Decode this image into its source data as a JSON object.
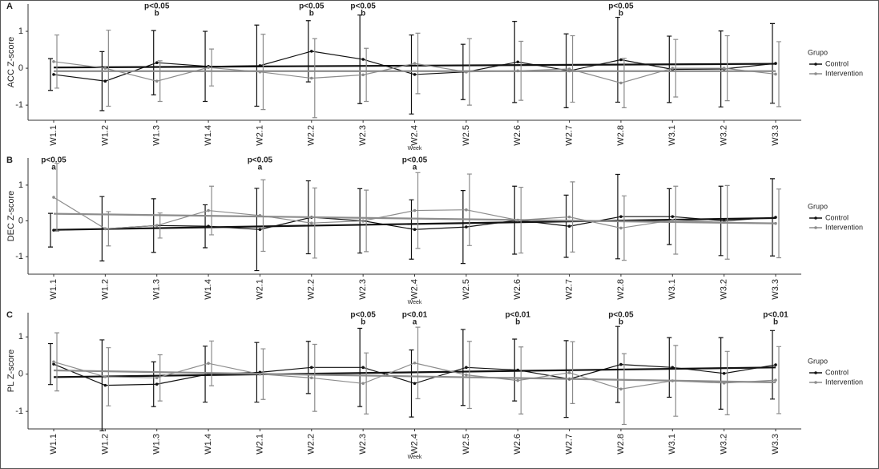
{
  "chart_data": [
    {
      "type": "line",
      "panel": "A",
      "ylabel": "ACC Z-score",
      "xlabel": "Week",
      "legend_title": "Grupo",
      "categories": [
        "W1.1",
        "W1.2",
        "W1.3",
        "W1.4",
        "W2.1",
        "W2.2",
        "W2.3",
        "W2.4",
        "W2.5",
        "W2.6",
        "W2.7",
        "W2.8",
        "W3.1",
        "W3.2",
        "W3.3"
      ],
      "ylim": [
        -1.41,
        1.74
      ],
      "yticks": [
        -1,
        0,
        1
      ],
      "series": [
        {
          "name": "Control",
          "color": "#111111",
          "values": [
            -0.17,
            -0.35,
            0.15,
            0.05,
            0.07,
            0.46,
            0.24,
            -0.17,
            -0.1,
            0.17,
            -0.07,
            0.23,
            -0.03,
            -0.02,
            0.13
          ],
          "errors": [
            0.43,
            0.8,
            0.87,
            0.95,
            1.1,
            0.83,
            1.2,
            1.07,
            0.75,
            1.1,
            1.0,
            1.15,
            0.9,
            1.03,
            1.08
          ],
          "trend": [
            0.02,
            0.12
          ]
        },
        {
          "name": "Intervention",
          "color": "#8c8c8c",
          "values": [
            0.18,
            0.0,
            -0.35,
            0.02,
            -0.1,
            -0.27,
            -0.18,
            0.13,
            -0.1,
            -0.07,
            -0.02,
            -0.4,
            0.0,
            0.0,
            -0.16
          ],
          "errors": [
            0.72,
            1.03,
            0.55,
            0.5,
            1.02,
            1.07,
            0.72,
            0.82,
            0.9,
            0.8,
            0.9,
            0.67,
            0.78,
            0.88,
            0.88
          ],
          "trend": [
            -0.08,
            -0.08
          ]
        }
      ],
      "annotations": [
        {
          "x": "W1.3",
          "label": "p<0.05",
          "sub": "b"
        },
        {
          "x": "W2.2",
          "label": "p<0.05",
          "sub": "b"
        },
        {
          "x": "W2.3",
          "label": "p<0.05",
          "sub": "b"
        },
        {
          "x": "W2.8",
          "label": "p<0.05",
          "sub": "b"
        }
      ]
    },
    {
      "type": "line",
      "panel": "B",
      "ylabel": "DEC Z-score",
      "xlabel": "Week",
      "legend_title": "Grupo",
      "categories": [
        "W1.1",
        "W1.2",
        "W1.3",
        "W1.4",
        "W2.1",
        "W2.2",
        "W2.3",
        "W2.4",
        "W2.5",
        "W2.6",
        "W2.7",
        "W2.8",
        "W3.1",
        "W3.2",
        "W3.3"
      ],
      "ylim": [
        -1.49,
        1.76
      ],
      "yticks": [
        -1,
        0,
        1
      ],
      "series": [
        {
          "name": "Control",
          "color": "#111111",
          "values": [
            -0.26,
            -0.22,
            -0.13,
            -0.15,
            -0.24,
            0.1,
            0.0,
            -0.24,
            -0.17,
            0.02,
            -0.15,
            0.12,
            0.12,
            0.0,
            0.1
          ],
          "errors": [
            0.47,
            0.9,
            0.75,
            0.6,
            1.15,
            1.02,
            0.9,
            0.83,
            1.02,
            0.95,
            0.87,
            1.18,
            0.78,
            0.97,
            1.08
          ],
          "trend": [
            -0.25,
            0.08
          ]
        },
        {
          "name": "Intervention",
          "color": "#8c8c8c",
          "values": [
            0.66,
            -0.22,
            -0.13,
            0.29,
            0.15,
            -0.06,
            0.0,
            0.29,
            0.31,
            0.02,
            0.11,
            -0.2,
            0.02,
            -0.04,
            -0.07
          ],
          "errors": [
            0.95,
            0.48,
            0.35,
            0.68,
            1.0,
            0.98,
            0.86,
            1.06,
            1.0,
            0.92,
            0.98,
            0.9,
            0.95,
            1.03,
            0.96
          ],
          "trend": [
            0.2,
            -0.07
          ]
        }
      ],
      "annotations": [
        {
          "x": "W1.1",
          "label": "p<0.05",
          "sub": "a"
        },
        {
          "x": "W2.1",
          "label": "p<0.05",
          "sub": "a"
        },
        {
          "x": "W2.4",
          "label": "p<0.05",
          "sub": "a"
        }
      ]
    },
    {
      "type": "line",
      "panel": "C",
      "ylabel": "PL Z-score",
      "xlabel": "Week",
      "legend_title": "Grupo",
      "categories": [
        "W1.1",
        "W1.2",
        "W1.3",
        "W1.4",
        "W2.1",
        "W2.2",
        "W2.3",
        "W2.4",
        "W2.5",
        "W2.6",
        "W2.7",
        "W2.8",
        "W3.1",
        "W3.2",
        "W3.3"
      ],
      "ylim": [
        -1.47,
        1.65
      ],
      "yticks": [
        -1,
        0,
        1
      ],
      "series": [
        {
          "name": "Control",
          "color": "#111111",
          "values": [
            0.27,
            -0.3,
            -0.27,
            0.0,
            0.05,
            0.18,
            0.18,
            -0.25,
            0.18,
            0.11,
            -0.13,
            0.26,
            0.18,
            0.02,
            0.25
          ],
          "errors": [
            0.55,
            1.22,
            0.6,
            0.75,
            0.8,
            0.7,
            1.05,
            0.9,
            1.02,
            0.83,
            1.03,
            1.02,
            0.8,
            0.96,
            0.92
          ],
          "trend": [
            -0.08,
            0.18
          ]
        },
        {
          "name": "Intervention",
          "color": "#8c8c8c",
          "values": [
            0.33,
            -0.07,
            -0.1,
            0.29,
            0.0,
            -0.1,
            -0.25,
            0.3,
            -0.02,
            -0.17,
            0.04,
            -0.4,
            -0.18,
            -0.24,
            -0.16
          ],
          "errors": [
            0.78,
            0.78,
            0.62,
            0.6,
            0.68,
            0.9,
            0.82,
            0.96,
            0.9,
            0.9,
            0.83,
            0.95,
            0.95,
            0.85,
            0.9
          ],
          "trend": [
            0.1,
            -0.22
          ]
        }
      ],
      "annotations": [
        {
          "x": "W2.3",
          "label": "p<0.05",
          "sub": "b"
        },
        {
          "x": "W2.4",
          "label": "p<0.01",
          "sub": "a"
        },
        {
          "x": "W2.6",
          "label": "p<0.01",
          "sub": "b"
        },
        {
          "x": "W2.8",
          "label": "p<0.05",
          "sub": "b"
        },
        {
          "x": "W3.3",
          "label": "p<0.01",
          "sub": "b"
        }
      ]
    }
  ]
}
